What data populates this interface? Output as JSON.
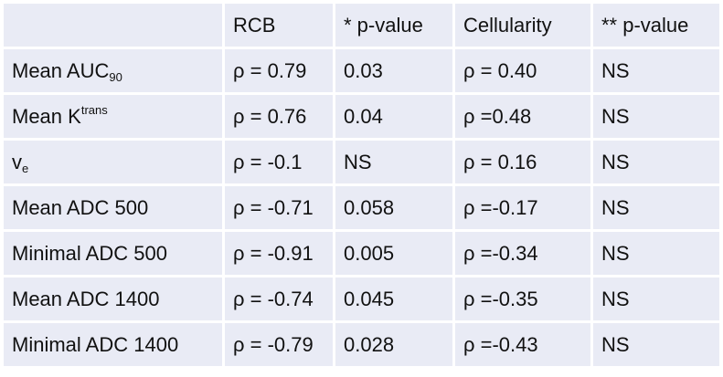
{
  "headers": [
    "",
    "RCB",
    "* p-value",
    "Cellularity",
    "** p-value"
  ],
  "rows": [
    {
      "label_main": "Mean AUC",
      "label_sub": "90",
      "label_sup": "",
      "rcb": "ρ = 0.79",
      "p1": "0.03",
      "cell": "ρ = 0.40",
      "p2": "NS"
    },
    {
      "label_main": "Mean K",
      "label_sub": "",
      "label_sup": "trans",
      "rcb": "ρ = 0.76",
      "p1": "0.04",
      "cell": "ρ =0.48",
      "p2": "NS"
    },
    {
      "label_main": "v",
      "label_sub": "e",
      "label_sup": "",
      "rcb": "ρ = -0.1",
      "p1": "NS",
      "cell": "ρ = 0.16",
      "p2": "NS"
    },
    {
      "label_main": "Mean ADC 500",
      "label_sub": "",
      "label_sup": "",
      "rcb": "ρ = -0.71",
      "p1": "0.058",
      "cell": "ρ =-0.17",
      "p2": "NS"
    },
    {
      "label_main": "Minimal ADC 500",
      "label_sub": "",
      "label_sup": "",
      "rcb": "ρ = -0.91",
      "p1": "0.005",
      "cell": "ρ =-0.34",
      "p2": "NS"
    },
    {
      "label_main": "Mean ADC 1400",
      "label_sub": "",
      "label_sup": "",
      "rcb": "ρ = -0.74",
      "p1": "0.045",
      "cell": "ρ =-0.35",
      "p2": "NS"
    },
    {
      "label_main": "Minimal ADC 1400",
      "label_sub": "",
      "label_sup": "",
      "rcb": "ρ = -0.79",
      "p1": "0.028",
      "cell": "ρ =-0.43",
      "p2": "NS"
    }
  ]
}
